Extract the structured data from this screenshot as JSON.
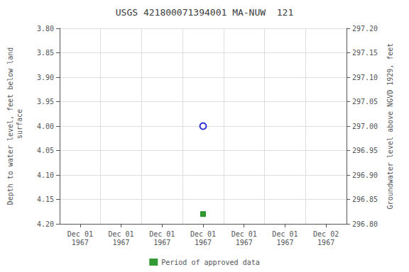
{
  "chart_data": {
    "type": "scatter",
    "title": "USGS 421800071394001 MA-NUW  121",
    "y_label": "Depth to water level, feet below land\n surface",
    "y2_label": "Groundwater level above NGVD 1929, feet",
    "categories": [
      "Dec 01\n1967",
      "Dec 01\n1967",
      "Dec 01\n1967",
      "Dec 01\n1967",
      "Dec 01\n1967",
      "Dec 01\n1967",
      "Dec 02\n1967"
    ],
    "series": [
      {
        "name": "Period of approved data",
        "color": "#008000",
        "marker": "square",
        "values": [
          null,
          null,
          null,
          4.18,
          null,
          null,
          null
        ]
      },
      {
        "color": "#0000cc",
        "marker": "open_circle",
        "values": [
          null,
          null,
          null,
          4.0,
          null,
          null,
          null
        ]
      }
    ],
    "ylim": [
      4.2,
      3.8
    ],
    "yticks": [
      {
        "value": 3.8,
        "label": "3.80"
      },
      {
        "value": 3.85,
        "label": "3.85"
      },
      {
        "value": 3.9,
        "label": "3.90"
      },
      {
        "value": 3.95,
        "label": "3.95"
      },
      {
        "value": 4.0,
        "label": "4.00"
      },
      {
        "value": 4.05,
        "label": "4.05"
      },
      {
        "value": 4.1,
        "label": "4.10"
      },
      {
        "value": 4.15,
        "label": "4.15"
      },
      {
        "value": 4.2,
        "label": "4.20"
      }
    ],
    "y2lim": [
      296.8,
      297.2
    ],
    "y2ticks": [
      {
        "value": 297.2,
        "label": "297.20"
      },
      {
        "value": 297.15,
        "label": "297.15"
      },
      {
        "value": 297.1,
        "label": "297.10"
      },
      {
        "value": 297.05,
        "label": "297.05"
      },
      {
        "value": 297.0,
        "label": "297.00"
      },
      {
        "value": 296.95,
        "label": "296.95"
      },
      {
        "value": 296.9,
        "label": "296.90"
      },
      {
        "value": 296.85,
        "label": "296.85"
      },
      {
        "value": 296.8,
        "label": "296.80"
      }
    ],
    "grid": true,
    "legend": "bottom"
  }
}
